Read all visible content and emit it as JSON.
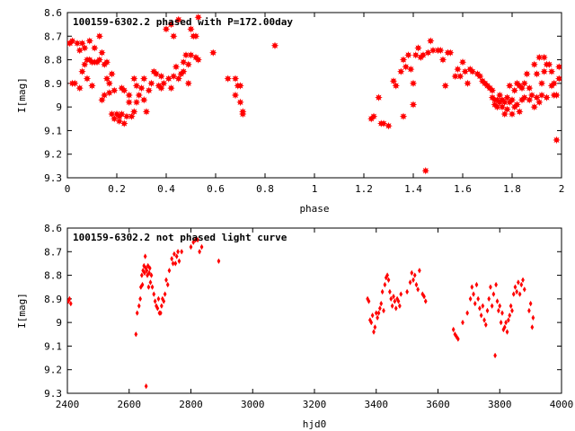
{
  "chart_data": [
    {
      "type": "scatter",
      "title": "100159-6302.2 phased with P=172.00day",
      "xlabel": "phase",
      "ylabel": "I[mag]",
      "xlim": [
        0,
        2
      ],
      "ylim": [
        9.3,
        8.6
      ],
      "y_inverted": true,
      "xticks": [
        "0",
        "0.2",
        "0.4",
        "0.6",
        "0.8",
        "1",
        "1.2",
        "1.4",
        "1.6",
        "1.8",
        "2"
      ],
      "xtick_values": [
        0,
        0.2,
        0.4,
        0.6,
        0.8,
        1.0,
        1.2,
        1.4,
        1.6,
        1.8,
        2.0
      ],
      "yticks": [
        "8.6",
        "8.7",
        "8.8",
        "8.9",
        "9",
        "9.1",
        "9.2",
        "9.3"
      ],
      "ytick_values": [
        8.6,
        8.7,
        8.8,
        8.9,
        9.0,
        9.1,
        9.2,
        9.3
      ],
      "color": "#ff0000",
      "marker": "filled-star",
      "points": [
        [
          0.0,
          8.73
        ],
        [
          0.01,
          8.73
        ],
        [
          0.02,
          8.72
        ],
        [
          0.02,
          8.9
        ],
        [
          0.03,
          8.9
        ],
        [
          0.04,
          8.73
        ],
        [
          0.05,
          8.92
        ],
        [
          0.05,
          8.76
        ],
        [
          0.06,
          8.73
        ],
        [
          0.06,
          8.85
        ],
        [
          0.07,
          8.82
        ],
        [
          0.07,
          8.75
        ],
        [
          0.08,
          8.8
        ],
        [
          0.08,
          8.88
        ],
        [
          0.09,
          8.72
        ],
        [
          0.09,
          8.8
        ],
        [
          0.1,
          8.81
        ],
        [
          0.1,
          8.91
        ],
        [
          0.11,
          8.75
        ],
        [
          0.11,
          8.81
        ],
        [
          0.12,
          8.81
        ],
        [
          0.13,
          8.7
        ],
        [
          0.13,
          8.8
        ],
        [
          0.14,
          8.77
        ],
        [
          0.14,
          8.97
        ],
        [
          0.15,
          8.82
        ],
        [
          0.15,
          8.95
        ],
        [
          0.16,
          8.81
        ],
        [
          0.16,
          8.88
        ],
        [
          0.17,
          8.94
        ],
        [
          0.17,
          8.9
        ],
        [
          0.18,
          9.03
        ],
        [
          0.18,
          8.86
        ],
        [
          0.19,
          9.05
        ],
        [
          0.19,
          8.93
        ],
        [
          0.2,
          9.03
        ],
        [
          0.21,
          9.04
        ],
        [
          0.21,
          9.06
        ],
        [
          0.22,
          8.92
        ],
        [
          0.22,
          9.03
        ],
        [
          0.23,
          9.07
        ],
        [
          0.23,
          8.93
        ],
        [
          0.24,
          9.04
        ],
        [
          0.25,
          8.95
        ],
        [
          0.25,
          8.98
        ],
        [
          0.26,
          9.04
        ],
        [
          0.27,
          9.02
        ],
        [
          0.27,
          8.88
        ],
        [
          0.28,
          8.91
        ],
        [
          0.28,
          8.98
        ],
        [
          0.29,
          8.95
        ],
        [
          0.3,
          8.92
        ],
        [
          0.31,
          8.97
        ],
        [
          0.31,
          8.88
        ],
        [
          0.32,
          9.02
        ],
        [
          0.33,
          8.93
        ],
        [
          0.34,
          8.9
        ],
        [
          0.35,
          8.85
        ],
        [
          0.36,
          8.86
        ],
        [
          0.37,
          8.91
        ],
        [
          0.38,
          8.92
        ],
        [
          0.38,
          8.87
        ],
        [
          0.39,
          8.9
        ],
        [
          0.4,
          8.67
        ],
        [
          0.41,
          8.88
        ],
        [
          0.42,
          8.92
        ],
        [
          0.42,
          8.65
        ],
        [
          0.43,
          8.87
        ],
        [
          0.43,
          8.7
        ],
        [
          0.44,
          8.83
        ],
        [
          0.45,
          8.88
        ],
        [
          0.45,
          8.63
        ],
        [
          0.46,
          8.86
        ],
        [
          0.47,
          8.85
        ],
        [
          0.47,
          8.81
        ],
        [
          0.48,
          8.78
        ],
        [
          0.49,
          8.9
        ],
        [
          0.49,
          8.82
        ],
        [
          0.5,
          8.78
        ],
        [
          0.5,
          8.67
        ],
        [
          0.51,
          8.7
        ],
        [
          0.52,
          8.7
        ],
        [
          0.52,
          8.79
        ],
        [
          0.53,
          8.62
        ],
        [
          0.53,
          8.8
        ],
        [
          0.59,
          8.77
        ],
        [
          0.65,
          8.88
        ],
        [
          0.68,
          8.88
        ],
        [
          0.68,
          8.95
        ],
        [
          0.69,
          8.91
        ],
        [
          0.7,
          8.91
        ],
        [
          0.7,
          8.98
        ],
        [
          0.71,
          9.02
        ],
        [
          0.71,
          9.03
        ],
        [
          0.84,
          8.74
        ],
        [
          1.23,
          9.05
        ],
        [
          1.24,
          9.04
        ],
        [
          1.26,
          8.96
        ],
        [
          1.27,
          9.07
        ],
        [
          1.28,
          9.07
        ],
        [
          1.3,
          9.08
        ],
        [
          1.32,
          8.89
        ],
        [
          1.33,
          8.91
        ],
        [
          1.35,
          8.85
        ],
        [
          1.36,
          8.8
        ],
        [
          1.36,
          9.04
        ],
        [
          1.37,
          8.83
        ],
        [
          1.38,
          8.78
        ],
        [
          1.39,
          8.84
        ],
        [
          1.4,
          8.9
        ],
        [
          1.4,
          8.99
        ],
        [
          1.41,
          8.78
        ],
        [
          1.42,
          8.75
        ],
        [
          1.43,
          8.79
        ],
        [
          1.44,
          8.78
        ],
        [
          1.45,
          9.27
        ],
        [
          1.46,
          8.77
        ],
        [
          1.47,
          8.72
        ],
        [
          1.48,
          8.76
        ],
        [
          1.5,
          8.76
        ],
        [
          1.51,
          8.76
        ],
        [
          1.52,
          8.8
        ],
        [
          1.53,
          8.91
        ],
        [
          1.54,
          8.77
        ],
        [
          1.55,
          8.77
        ],
        [
          1.57,
          8.87
        ],
        [
          1.58,
          8.84
        ],
        [
          1.59,
          8.87
        ],
        [
          1.6,
          8.81
        ],
        [
          1.61,
          8.85
        ],
        [
          1.62,
          8.9
        ],
        [
          1.63,
          8.84
        ],
        [
          1.64,
          8.85
        ],
        [
          1.66,
          8.86
        ],
        [
          1.67,
          8.87
        ],
        [
          1.68,
          8.89
        ],
        [
          1.69,
          8.9
        ],
        [
          1.7,
          8.91
        ],
        [
          1.71,
          8.92
        ],
        [
          1.72,
          8.93
        ],
        [
          1.72,
          8.96
        ],
        [
          1.73,
          8.97
        ],
        [
          1.73,
          8.99
        ],
        [
          1.74,
          9.0
        ],
        [
          1.74,
          8.97
        ],
        [
          1.75,
          8.98
        ],
        [
          1.75,
          8.95
        ],
        [
          1.76,
          9.0
        ],
        [
          1.76,
          8.97
        ],
        [
          1.77,
          8.98
        ],
        [
          1.77,
          9.03
        ],
        [
          1.78,
          8.96
        ],
        [
          1.78,
          9.01
        ],
        [
          1.79,
          8.98
        ],
        [
          1.79,
          8.91
        ],
        [
          1.8,
          9.03
        ],
        [
          1.8,
          8.97
        ],
        [
          1.81,
          8.93
        ],
        [
          1.81,
          9.0
        ],
        [
          1.82,
          8.9
        ],
        [
          1.82,
          8.99
        ],
        [
          1.83,
          8.91
        ],
        [
          1.83,
          9.02
        ],
        [
          1.84,
          8.92
        ],
        [
          1.84,
          8.97
        ],
        [
          1.85,
          8.96
        ],
        [
          1.85,
          8.9
        ],
        [
          1.86,
          8.86
        ],
        [
          1.87,
          8.92
        ],
        [
          1.87,
          8.97
        ],
        [
          1.88,
          8.95
        ],
        [
          1.89,
          8.82
        ],
        [
          1.89,
          9.0
        ],
        [
          1.9,
          8.86
        ],
        [
          1.9,
          8.96
        ],
        [
          1.91,
          8.79
        ],
        [
          1.91,
          8.98
        ],
        [
          1.92,
          8.95
        ],
        [
          1.92,
          8.9
        ],
        [
          1.93,
          8.79
        ],
        [
          1.93,
          8.85
        ],
        [
          1.94,
          8.82
        ],
        [
          1.94,
          8.96
        ],
        [
          1.95,
          8.82
        ],
        [
          1.96,
          8.91
        ],
        [
          1.96,
          8.85
        ],
        [
          1.97,
          8.95
        ],
        [
          1.97,
          8.9
        ],
        [
          1.98,
          8.95
        ],
        [
          1.98,
          9.14
        ],
        [
          1.99,
          8.83
        ],
        [
          1.99,
          8.88
        ]
      ]
    },
    {
      "type": "scatter",
      "title": "100159-6302.2 not phased light curve",
      "xlabel": "hjd0",
      "ylabel": "I[mag]",
      "xlim": [
        2400,
        4000
      ],
      "ylim": [
        9.3,
        8.6
      ],
      "y_inverted": true,
      "xticks": [
        "2400",
        "2600",
        "2800",
        "3000",
        "3200",
        "3400",
        "3600",
        "3800",
        "4000"
      ],
      "xtick_values": [
        2400,
        2600,
        2800,
        3000,
        3200,
        3400,
        3600,
        3800,
        4000
      ],
      "yticks": [
        "8.6",
        "8.7",
        "8.8",
        "8.9",
        "9",
        "9.1",
        "9.2",
        "9.3"
      ],
      "ytick_values": [
        8.6,
        8.7,
        8.8,
        8.9,
        9.0,
        9.1,
        9.2,
        9.3
      ],
      "color": "#ff0000",
      "marker": "small-diamond",
      "points": [
        [
          2403,
          8.91
        ],
        [
          2407,
          8.9
        ],
        [
          2411,
          8.92
        ],
        [
          2622,
          9.05
        ],
        [
          2626,
          8.96
        ],
        [
          2632,
          8.93
        ],
        [
          2636,
          8.9
        ],
        [
          2638,
          8.85
        ],
        [
          2641,
          8.8
        ],
        [
          2643,
          8.84
        ],
        [
          2645,
          8.78
        ],
        [
          2648,
          8.76
        ],
        [
          2650,
          8.79
        ],
        [
          2652,
          8.72
        ],
        [
          2654,
          8.77
        ],
        [
          2655,
          9.27
        ],
        [
          2657,
          8.78
        ],
        [
          2659,
          8.8
        ],
        [
          2661,
          8.76
        ],
        [
          2663,
          8.85
        ],
        [
          2665,
          8.79
        ],
        [
          2667,
          8.77
        ],
        [
          2669,
          8.83
        ],
        [
          2672,
          8.8
        ],
        [
          2675,
          8.85
        ],
        [
          2680,
          8.88
        ],
        [
          2684,
          8.91
        ],
        [
          2688,
          8.93
        ],
        [
          2692,
          8.94
        ],
        [
          2695,
          8.9
        ],
        [
          2698,
          8.96
        ],
        [
          2702,
          8.96
        ],
        [
          2705,
          8.93
        ],
        [
          2708,
          8.9
        ],
        [
          2712,
          8.91
        ],
        [
          2716,
          8.88
        ],
        [
          2720,
          8.82
        ],
        [
          2725,
          8.84
        ],
        [
          2730,
          8.78
        ],
        [
          2738,
          8.73
        ],
        [
          2742,
          8.75
        ],
        [
          2746,
          8.71
        ],
        [
          2750,
          8.75
        ],
        [
          2754,
          8.72
        ],
        [
          2758,
          8.7
        ],
        [
          2762,
          8.74
        ],
        [
          2770,
          8.7
        ],
        [
          2800,
          8.68
        ],
        [
          2808,
          8.66
        ],
        [
          2815,
          8.65
        ],
        [
          2822,
          8.65
        ],
        [
          2828,
          8.7
        ],
        [
          2835,
          8.68
        ],
        [
          2890,
          8.74
        ],
        [
          3372,
          8.9
        ],
        [
          3376,
          8.91
        ],
        [
          3380,
          8.99
        ],
        [
          3384,
          9.0
        ],
        [
          3388,
          8.97
        ],
        [
          3392,
          9.04
        ],
        [
          3396,
          9.02
        ],
        [
          3400,
          8.96
        ],
        [
          3404,
          8.98
        ],
        [
          3408,
          8.96
        ],
        [
          3412,
          8.94
        ],
        [
          3416,
          8.92
        ],
        [
          3420,
          8.87
        ],
        [
          3424,
          8.95
        ],
        [
          3428,
          8.84
        ],
        [
          3432,
          8.81
        ],
        [
          3436,
          8.8
        ],
        [
          3440,
          8.82
        ],
        [
          3444,
          8.87
        ],
        [
          3448,
          8.9
        ],
        [
          3452,
          8.93
        ],
        [
          3456,
          8.89
        ],
        [
          3460,
          8.91
        ],
        [
          3464,
          8.94
        ],
        [
          3468,
          8.9
        ],
        [
          3472,
          8.91
        ],
        [
          3476,
          8.93
        ],
        [
          3480,
          8.88
        ],
        [
          3500,
          8.87
        ],
        [
          3510,
          8.83
        ],
        [
          3515,
          8.79
        ],
        [
          3520,
          8.82
        ],
        [
          3525,
          8.8
        ],
        [
          3530,
          8.84
        ],
        [
          3535,
          8.86
        ],
        [
          3540,
          8.78
        ],
        [
          3550,
          8.88
        ],
        [
          3555,
          8.89
        ],
        [
          3560,
          8.91
        ],
        [
          3650,
          9.03
        ],
        [
          3655,
          9.05
        ],
        [
          3660,
          9.06
        ],
        [
          3665,
          9.07
        ],
        [
          3680,
          9.0
        ],
        [
          3695,
          8.96
        ],
        [
          3705,
          8.9
        ],
        [
          3710,
          8.85
        ],
        [
          3715,
          8.88
        ],
        [
          3720,
          8.92
        ],
        [
          3725,
          8.84
        ],
        [
          3730,
          8.9
        ],
        [
          3735,
          8.94
        ],
        [
          3740,
          8.97
        ],
        [
          3745,
          8.93
        ],
        [
          3750,
          8.99
        ],
        [
          3755,
          9.01
        ],
        [
          3760,
          8.95
        ],
        [
          3765,
          8.9
        ],
        [
          3770,
          8.85
        ],
        [
          3775,
          8.93
        ],
        [
          3780,
          8.88
        ],
        [
          3785,
          9.14
        ],
        [
          3788,
          8.84
        ],
        [
          3792,
          8.91
        ],
        [
          3796,
          8.95
        ],
        [
          3800,
          8.93
        ],
        [
          3804,
          9.0
        ],
        [
          3808,
          8.96
        ],
        [
          3812,
          9.03
        ],
        [
          3816,
          9.02
        ],
        [
          3820,
          9.0
        ],
        [
          3824,
          9.04
        ],
        [
          3828,
          8.99
        ],
        [
          3832,
          8.97
        ],
        [
          3836,
          8.93
        ],
        [
          3840,
          8.95
        ],
        [
          3845,
          8.88
        ],
        [
          3850,
          8.85
        ],
        [
          3855,
          8.87
        ],
        [
          3860,
          8.83
        ],
        [
          3865,
          8.88
        ],
        [
          3870,
          8.84
        ],
        [
          3875,
          8.82
        ],
        [
          3880,
          8.86
        ],
        [
          3895,
          8.95
        ],
        [
          3900,
          8.92
        ],
        [
          3905,
          9.02
        ],
        [
          3908,
          8.98
        ]
      ]
    }
  ]
}
